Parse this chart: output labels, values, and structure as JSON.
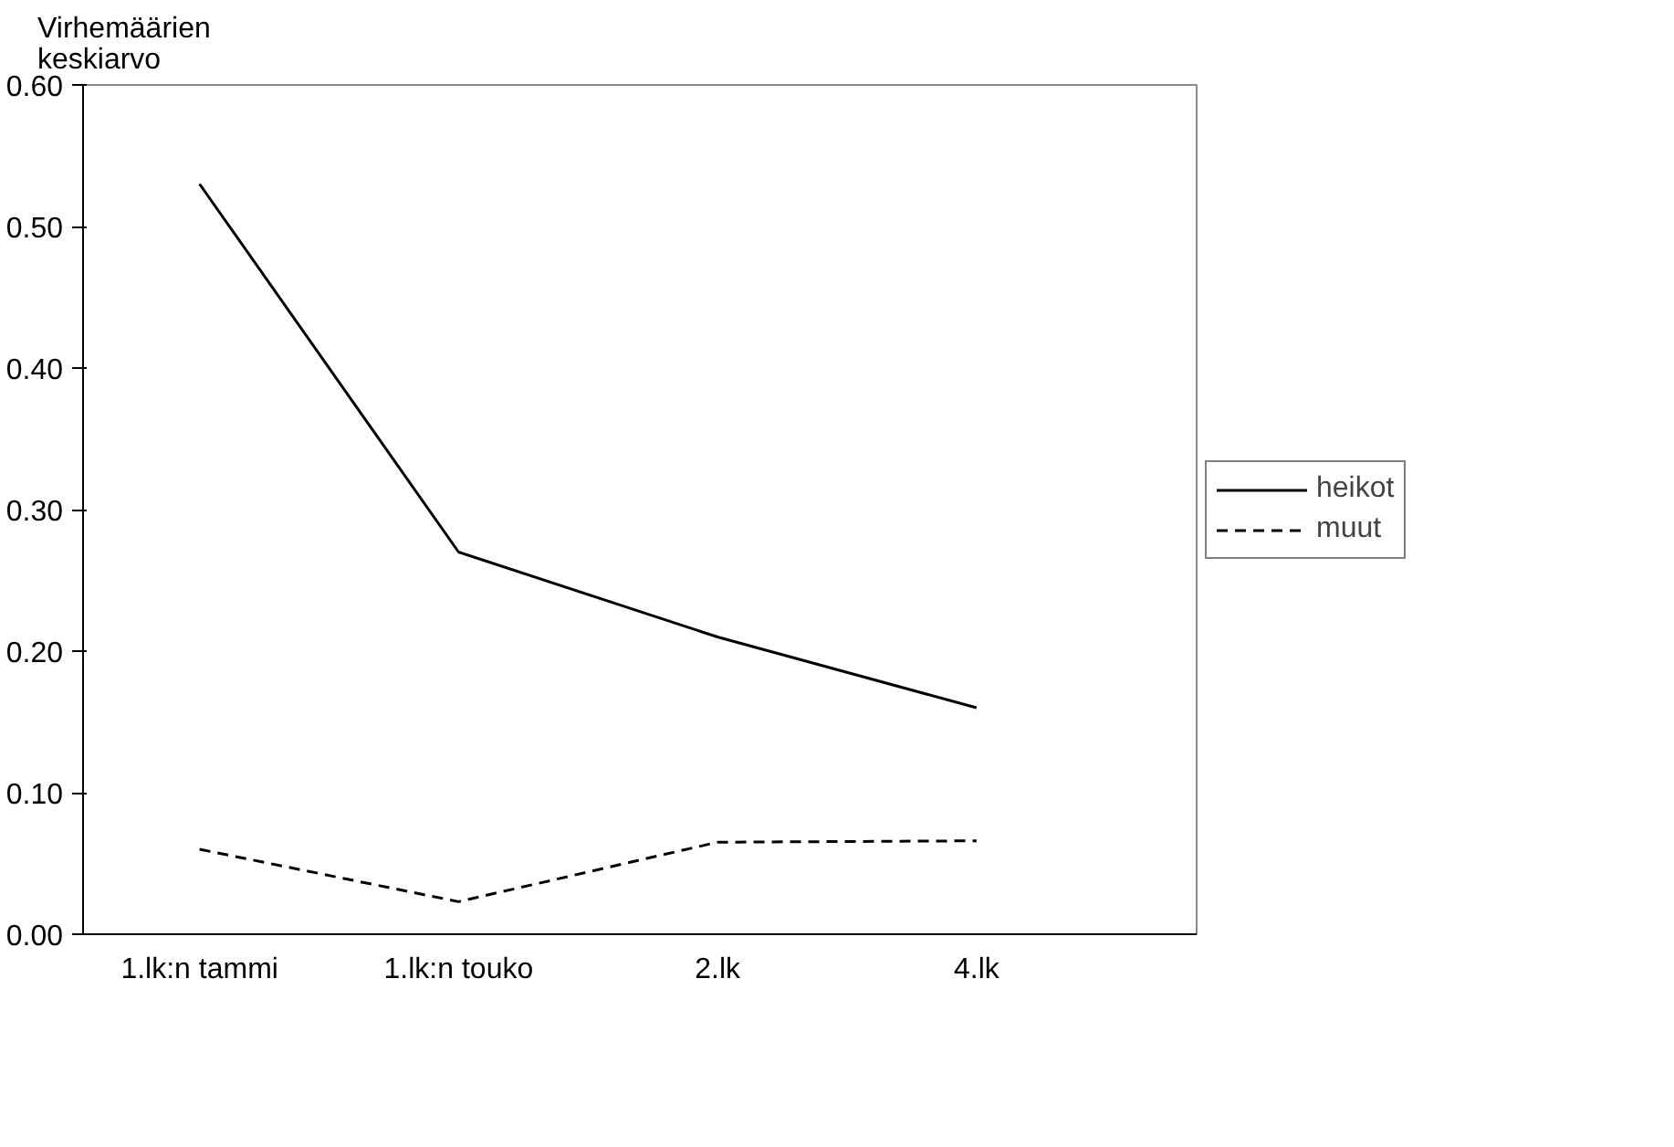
{
  "chart_data": {
    "type": "line",
    "ylabel": "Virhemäärien keskiarvo",
    "categories": [
      "1.lk:n tammi",
      "1.lk:n touko",
      "2.lk",
      "4.lk"
    ],
    "series": [
      {
        "name": "heikot",
        "color": "#000000",
        "values": [
          0.53,
          0.27,
          0.21,
          0.16
        ],
        "line_style": "solid"
      },
      {
        "name": "muut",
        "color": "#000000",
        "values": [
          0.06,
          0.023,
          0.065,
          0.066
        ],
        "line_style": "dashed"
      }
    ],
    "ylim": [
      0,
      0.6
    ],
    "yticks": [
      {
        "value": 0,
        "label": "0.00"
      },
      {
        "value": 0.1,
        "label": "0.10"
      },
      {
        "value": 0.2,
        "label": "0.20"
      },
      {
        "value": 0.3,
        "label": "0.30"
      },
      {
        "value": 0.4,
        "label": "0.40"
      },
      {
        "value": 0.5,
        "label": "0.50"
      },
      {
        "value": 0.6,
        "label": "0.60"
      }
    ],
    "grid": false,
    "legend": "right",
    "marker": "none"
  }
}
